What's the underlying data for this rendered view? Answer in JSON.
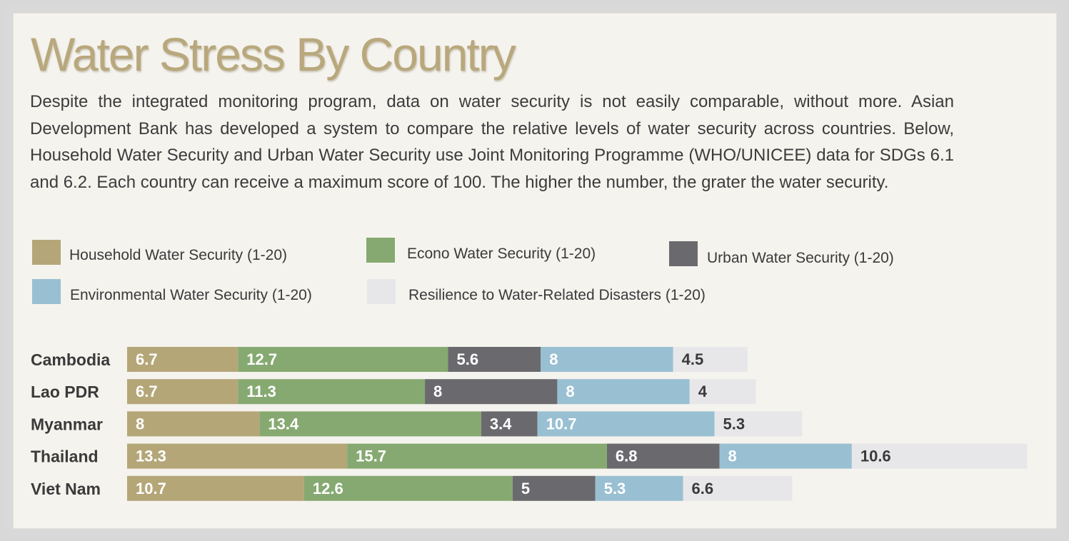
{
  "title": "Water Stress By Country",
  "intro": "Despite the integrated monitoring program, data on water security is not easily comparable, without more. Asian Development Bank has developed a system to compare the relative levels of water security across countries. Below, Household Water Security and Urban Water Security use Joint Monitoring Programme (WHO/UNICEE) data for SDGs 6.1 and 6.2. Each country can receive a maximum score of 100. The higher the number, the grater the water security.",
  "colors": {
    "household": "#b5a678",
    "econo": "#86a971",
    "urban": "#6a6a6e",
    "environmental": "#99bfd2",
    "resilience": "#e7e7e9"
  },
  "chart_data": {
    "type": "bar",
    "orientation": "horizontal",
    "stacked": true,
    "categories": [
      "Cambodia",
      "Lao PDR",
      "Myanmar",
      "Thailand",
      "Viet Nam"
    ],
    "series": [
      {
        "name": "Household Water Security (1-20)",
        "color": "#b5a678",
        "values": [
          6.7,
          6.7,
          8,
          13.3,
          10.7
        ]
      },
      {
        "name": "Econo Water Security (1-20)",
        "color": "#86a971",
        "values": [
          12.7,
          11.3,
          13.4,
          15.7,
          12.6
        ]
      },
      {
        "name": "Urban Water Security (1-20)",
        "color": "#6a6a6e",
        "values": [
          5.6,
          8,
          3.4,
          6.8,
          5
        ]
      },
      {
        "name": "Environmental Water Security (1-20)",
        "color": "#99bfd2",
        "values": [
          8,
          8,
          10.7,
          8,
          5.3
        ]
      },
      {
        "name": "Resilience to Water-Related Disasters (1-20)",
        "color": "#e7e7e9",
        "values": [
          4.5,
          4,
          5.3,
          10.6,
          6.6
        ]
      }
    ],
    "legend_position": "top",
    "grid": false
  }
}
